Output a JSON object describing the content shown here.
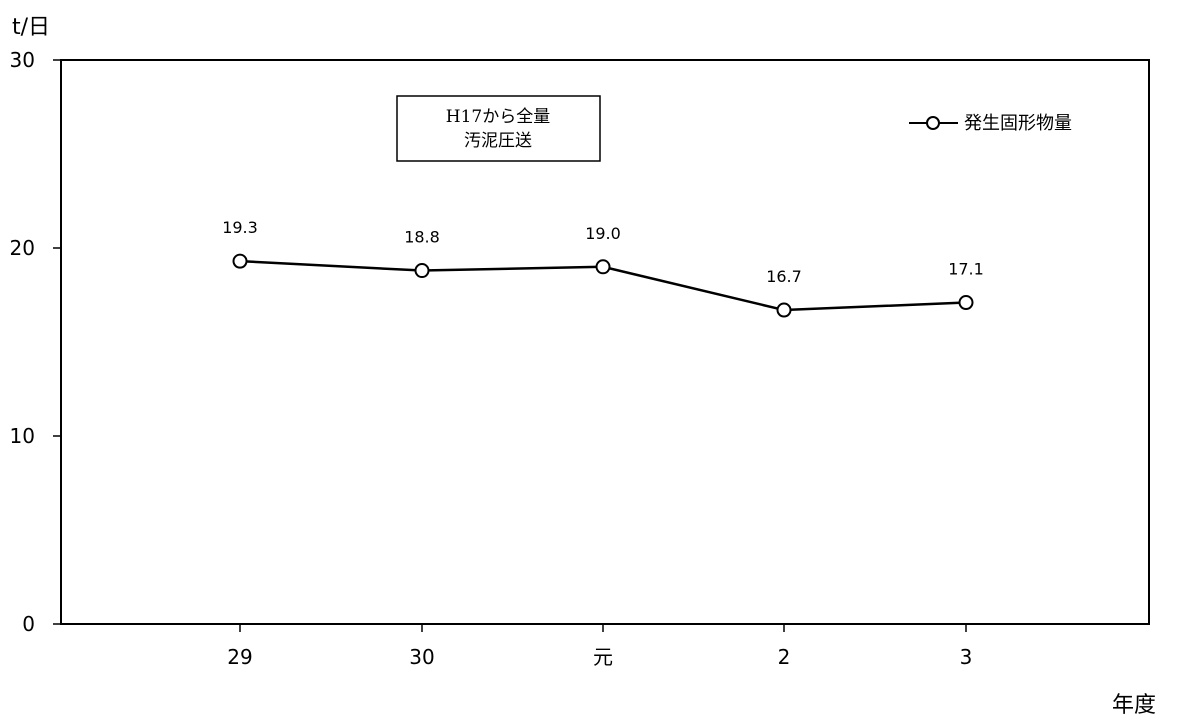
{
  "chart_data": {
    "type": "line",
    "ylabel": "t/日",
    "xlabel": "年度",
    "categories": [
      "29",
      "30",
      "元",
      "2",
      "3"
    ],
    "ylim": [
      0,
      30
    ],
    "yticks": [
      "0",
      "10",
      "20",
      "30"
    ],
    "series": [
      {
        "name": "発生固形物量",
        "values": [
          19.3,
          18.8,
          19.0,
          16.7,
          17.1
        ],
        "labels": [
          "19.3",
          "18.8",
          "19.0",
          "16.7",
          "17.1"
        ]
      }
    ],
    "annotation": [
      "H17から全量",
      "汚泥圧送"
    ],
    "legend_position": "top-right",
    "grid": false,
    "colors": {
      "line": "#000000",
      "marker_fill": "#ffffff"
    }
  }
}
